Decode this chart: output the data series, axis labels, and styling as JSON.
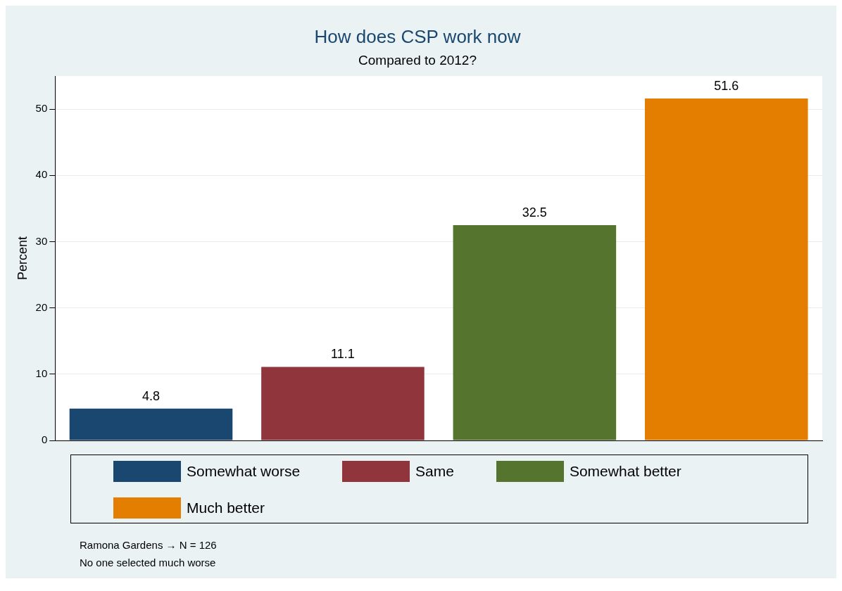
{
  "chart_data": {
    "type": "bar",
    "title": "How does CSP work now",
    "subtitle": "Compared to 2012?",
    "ylabel": "Percent",
    "categories": [
      null,
      null,
      null,
      null
    ],
    "series": [
      {
        "name": "Somewhat worse",
        "color": "#1a476f",
        "values": [
          4.8,
          null,
          null,
          null
        ]
      },
      {
        "name": "Same",
        "color": "#90353b",
        "values": [
          null,
          11.1,
          null,
          null
        ]
      },
      {
        "name": "Somewhat better",
        "color": "#55752f",
        "values": [
          null,
          null,
          32.5,
          null
        ]
      },
      {
        "name": "Much better",
        "color": "#e37e00",
        "values": [
          null,
          null,
          null,
          51.6
        ]
      }
    ],
    "ylim": [
      0,
      55
    ],
    "yticks": [
      0,
      10,
      20,
      30,
      40,
      50
    ],
    "grid": "y",
    "legend": "bottom",
    "data_labels": true,
    "annotations": [
      "Ramona Gardens → N = 126",
      "No one selected much worse"
    ]
  }
}
